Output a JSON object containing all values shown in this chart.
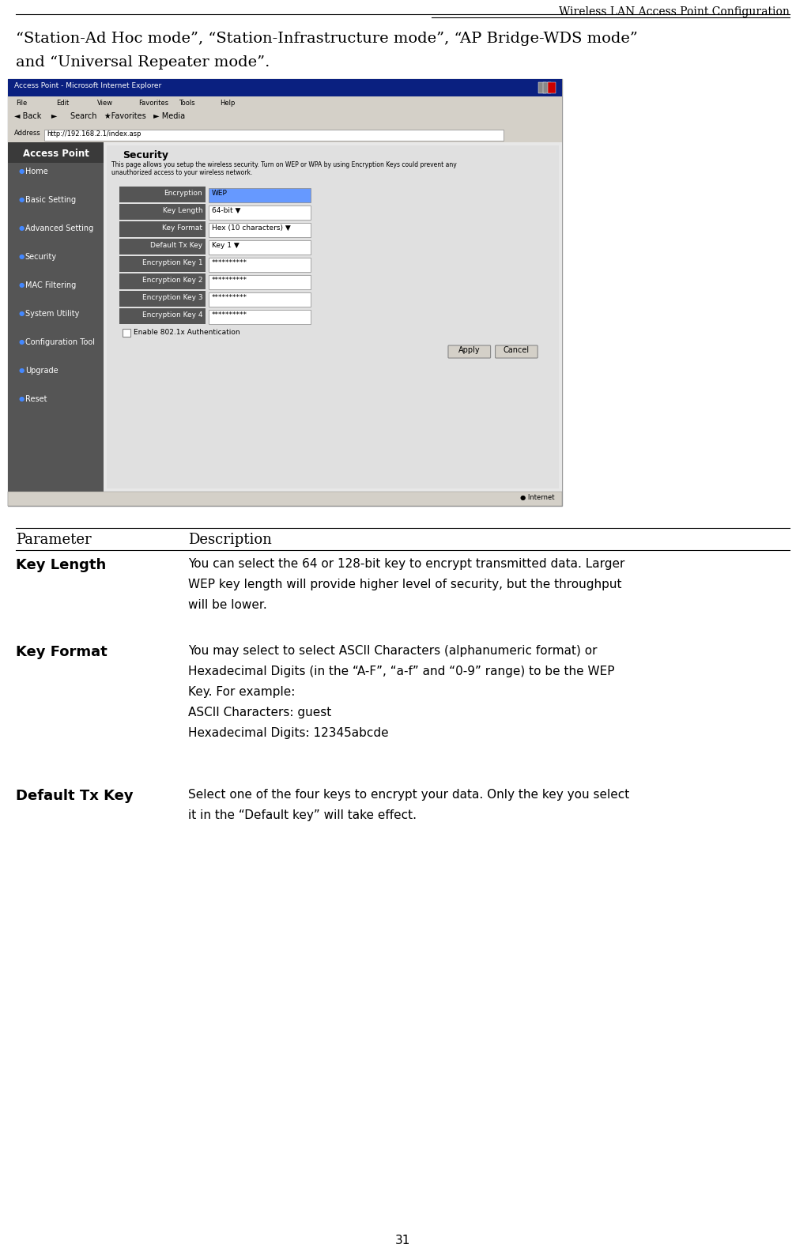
{
  "header_title": "Wireless LAN Access Point Configuration",
  "intro_line1": "“Station-Ad Hoc mode”, “Station-Infrastructure mode”, “AP Bridge-WDS mode”",
  "intro_line2": "and “Universal Repeater mode”.",
  "table_header_param": "Parameter",
  "table_header_desc": "Description",
  "rows": [
    {
      "param": "Key Length",
      "desc_lines": [
        "You can select the 64 or 128-bit key to encrypt transmitted data. Larger",
        "WEP key length will provide higher level of security, but the throughput",
        "will be lower."
      ]
    },
    {
      "param": "Key Format",
      "desc_lines": [
        "You may select to select ASCII Characters (alphanumeric format) or",
        "Hexadecimal Digits (in the “A-F”, “a-f” and “0-9” range) to be the WEP",
        "Key. For example:",
        "ASCII Characters: guest",
        "Hexadecimal Digits: 12345abcde"
      ]
    },
    {
      "param": "Default Tx Key",
      "desc_lines": [
        "Select one of the four keys to encrypt your data. Only the key you select",
        "it in the “Default key” will take effect."
      ]
    }
  ],
  "page_number": "31",
  "bg_color": "#ffffff",
  "text_color": "#000000",
  "header_line_color": "#000000",
  "screenshot_placeholder": true
}
